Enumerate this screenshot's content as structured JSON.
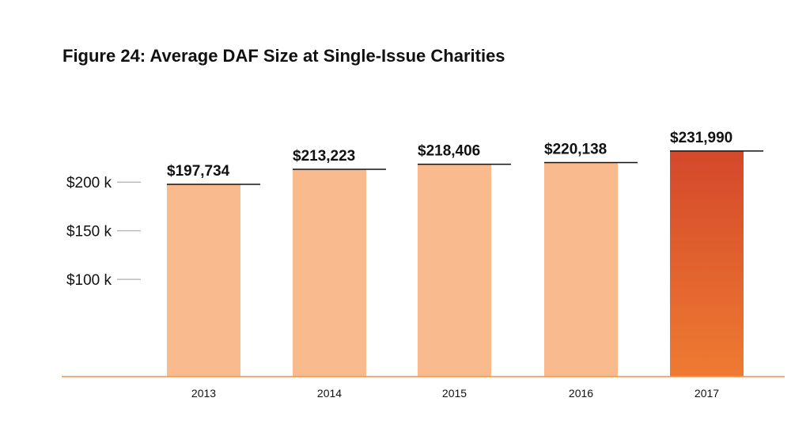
{
  "chart_data": {
    "type": "bar",
    "title": "Figure 24: Average DAF Size at Single-Issue Charities",
    "xlabel": "",
    "ylabel": "",
    "categories": [
      "2013",
      "2014",
      "2015",
      "2016",
      "2017"
    ],
    "values": [
      197734,
      213223,
      218406,
      220138,
      231990
    ],
    "value_labels": [
      "$197,734",
      "$213,223",
      "$218,406",
      "$220,138",
      "$231,990"
    ],
    "y_ticks": [
      {
        "value": 200000,
        "label": "$200 k"
      },
      {
        "value": 150000,
        "label": "$150 k"
      },
      {
        "value": 100000,
        "label": "$100 k"
      }
    ],
    "ylim": [
      0,
      250000
    ],
    "grid": false,
    "legend": "none",
    "colors": {
      "bar": "#f9bb8e",
      "highlight_top": "#d4482b",
      "highlight_bottom": "#ee7b31",
      "baseline": "#f0914f",
      "tick": "#bbbbbb",
      "text": "#111111"
    },
    "highlight_index": 4
  }
}
